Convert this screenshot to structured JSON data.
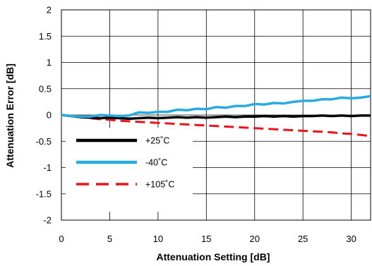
{
  "chart_data": {
    "type": "line",
    "title": "",
    "xlabel": "Attenuation Setting [dB]",
    "ylabel": "Attenuation Error [dB]",
    "xlim": [
      0,
      32
    ],
    "ylim": [
      -2,
      2
    ],
    "x_ticks": [
      0,
      5,
      10,
      15,
      20,
      25,
      30
    ],
    "y_ticks": [
      -2,
      -1.5,
      -1,
      -0.5,
      0,
      0.5,
      1,
      1.5,
      2
    ],
    "x_tick_labels": [
      "0",
      "5",
      "10",
      "15",
      "20",
      "25",
      "30"
    ],
    "y_tick_labels": [
      "-2",
      "-1.5",
      "-1",
      "-0.5",
      "0",
      "0.5",
      "1",
      "1.5",
      "2"
    ],
    "grid": true,
    "legend_position": "bottom-left",
    "series": [
      {
        "name": "+25˚C",
        "color": "#000000",
        "dash": "solid",
        "x": [
          0,
          1,
          2,
          3,
          4,
          5,
          6,
          7,
          8,
          9,
          10,
          11,
          12,
          13,
          14,
          15,
          16,
          17,
          18,
          19,
          20,
          21,
          22,
          23,
          24,
          25,
          26,
          27,
          28,
          29,
          30,
          31,
          32
        ],
        "y": [
          0,
          -0.02,
          -0.04,
          -0.05,
          -0.06,
          -0.05,
          -0.06,
          -0.07,
          -0.06,
          -0.05,
          -0.06,
          -0.05,
          -0.04,
          -0.05,
          -0.04,
          -0.05,
          -0.04,
          -0.03,
          -0.04,
          -0.03,
          -0.03,
          -0.02,
          -0.03,
          -0.02,
          -0.03,
          -0.02,
          -0.02,
          -0.01,
          -0.02,
          -0.01,
          -0.02,
          -0.01,
          -0.01
        ]
      },
      {
        "name": "-40˚C",
        "color": "#29abe2",
        "dash": "solid",
        "x": [
          0,
          1,
          2,
          3,
          4,
          5,
          6,
          7,
          8,
          9,
          10,
          11,
          12,
          13,
          14,
          15,
          16,
          17,
          18,
          19,
          20,
          21,
          22,
          23,
          24,
          25,
          26,
          27,
          28,
          29,
          30,
          31,
          32
        ],
        "y": [
          0,
          -0.02,
          -0.03,
          -0.03,
          0.0,
          -0.01,
          -0.02,
          -0.01,
          0.05,
          0.04,
          0.06,
          0.06,
          0.1,
          0.09,
          0.12,
          0.11,
          0.15,
          0.14,
          0.17,
          0.17,
          0.21,
          0.2,
          0.23,
          0.22,
          0.25,
          0.27,
          0.27,
          0.3,
          0.3,
          0.33,
          0.32,
          0.33,
          0.36
        ]
      },
      {
        "name": "+105˚C",
        "color": "#e8141b",
        "dash": "dashed",
        "x": [
          0,
          1,
          2,
          3,
          4,
          5,
          6,
          7,
          8,
          9,
          10,
          11,
          12,
          13,
          14,
          15,
          16,
          17,
          18,
          19,
          20,
          21,
          22,
          23,
          24,
          25,
          26,
          27,
          28,
          29,
          30,
          31,
          32
        ],
        "y": [
          0,
          -0.02,
          -0.04,
          -0.06,
          -0.08,
          -0.09,
          -0.11,
          -0.12,
          -0.13,
          -0.14,
          -0.15,
          -0.16,
          -0.17,
          -0.18,
          -0.19,
          -0.2,
          -0.21,
          -0.22,
          -0.23,
          -0.24,
          -0.25,
          -0.26,
          -0.27,
          -0.28,
          -0.29,
          -0.3,
          -0.31,
          -0.32,
          -0.33,
          -0.35,
          -0.36,
          -0.38,
          -0.4
        ]
      }
    ]
  }
}
